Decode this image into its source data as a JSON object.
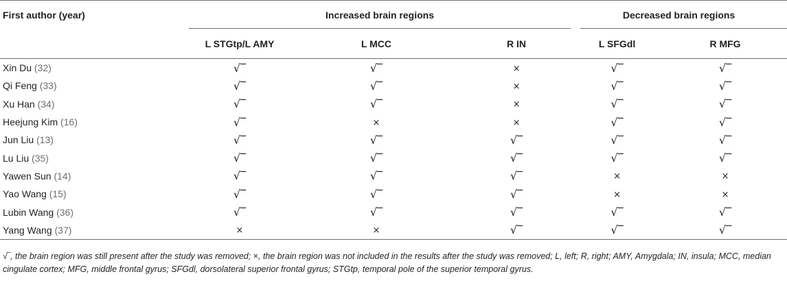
{
  "table": {
    "first_author_header": "First author (year)",
    "group_increased": "Increased brain regions",
    "group_decreased": "Decreased brain regions",
    "columns": [
      "L STGtp/L AMY",
      "L MCC",
      "R IN",
      "L SFGdl",
      "R MFG"
    ],
    "check_symbol": "√‾",
    "cross_symbol": "×",
    "rows": [
      {
        "author": "Xin Du",
        "ref": "(32)",
        "marks": [
          "check",
          "check",
          "cross",
          "check",
          "check"
        ]
      },
      {
        "author": "Qi Feng",
        "ref": "(33)",
        "marks": [
          "check",
          "check",
          "cross",
          "check",
          "check"
        ]
      },
      {
        "author": "Xu Han",
        "ref": "(34)",
        "marks": [
          "check",
          "check",
          "cross",
          "check",
          "check"
        ]
      },
      {
        "author": "Heejung Kim",
        "ref": "(16)",
        "marks": [
          "check",
          "cross",
          "cross",
          "check",
          "check"
        ]
      },
      {
        "author": "Jun Liu",
        "ref": "(13)",
        "marks": [
          "check",
          "check",
          "check",
          "check",
          "check"
        ]
      },
      {
        "author": "Lu Liu",
        "ref": "(35)",
        "marks": [
          "check",
          "check",
          "check",
          "check",
          "check"
        ]
      },
      {
        "author": "Yawen Sun",
        "ref": "(14)",
        "marks": [
          "check",
          "check",
          "check",
          "cross",
          "cross"
        ]
      },
      {
        "author": "Yao Wang",
        "ref": "(15)",
        "marks": [
          "check",
          "check",
          "check",
          "cross",
          "cross"
        ]
      },
      {
        "author": "Lubin Wang",
        "ref": "(36)",
        "marks": [
          "check",
          "check",
          "check",
          "check",
          "check"
        ]
      },
      {
        "author": "Yang Wang",
        "ref": "(37)",
        "marks": [
          "cross",
          "cross",
          "check",
          "check",
          "check"
        ]
      }
    ]
  },
  "footnote": {
    "check_symbol": "√‾",
    "text_1": ", the brain region was still present after the study was removed; ",
    "cross_symbol": "×",
    "text_2": ", the brain region was not included in the results after the study was removed; L, left; R, right; AMY, Amygdala; IN, insula; MCC, median cingulate cortex; MFG, middle frontal gyrus; SFGdl, dorsolateral superior frontal gyrus; STGtp, temporal pole of the superior temporal gyrus."
  }
}
